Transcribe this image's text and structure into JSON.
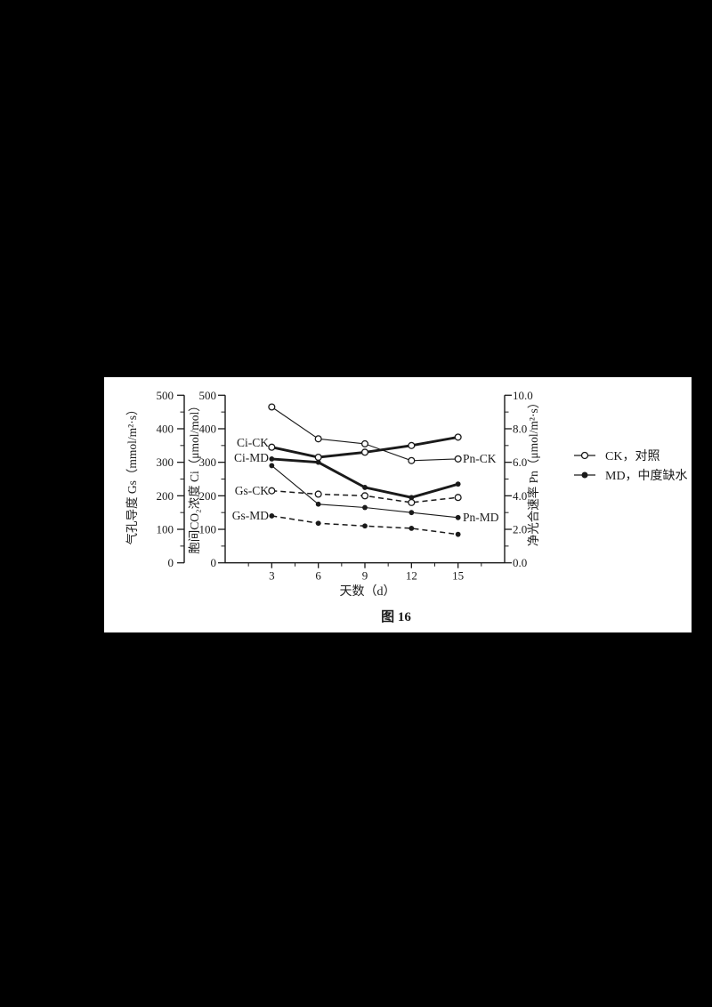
{
  "figure": {
    "caption": "图 16",
    "page_background": "#000000",
    "panel_background": "#ffffff",
    "ink": "#1a1a1a"
  },
  "chart_data": {
    "type": "line",
    "x": [
      3,
      6,
      9,
      12,
      15
    ],
    "xlabel": "天数（d）",
    "x_tick_labels": [
      "3",
      "6",
      "9",
      "12",
      "15"
    ],
    "x_range": [
      0,
      18
    ],
    "grid": false,
    "axes": {
      "gs": {
        "label": "气孔导度 Gs（mmol/m²·s）",
        "side": "outer-left",
        "ylim": [
          0,
          500
        ],
        "tick_step": 100,
        "minor_step": 50,
        "tick_labels": [
          "0",
          "100",
          "200",
          "300",
          "400",
          "500"
        ]
      },
      "ci": {
        "label": "胞间CO₂浓度 Ci（μmol/mol）",
        "side": "left",
        "ylim": [
          0,
          500
        ],
        "tick_step": 100,
        "minor_step": 50,
        "tick_labels": [
          "0",
          "100",
          "200",
          "300",
          "400",
          "500"
        ]
      },
      "pn": {
        "label": "净光合速率 Pn（μmol/m²·s）",
        "side": "right",
        "ylim": [
          0,
          10
        ],
        "tick_step": 2,
        "minor_step": 1,
        "tick_labels": [
          "0.0",
          "2.0",
          "4.0",
          "6.0",
          "8.0",
          "10.0"
        ]
      }
    },
    "series": [
      {
        "name": "Gs-CK",
        "axis": "gs",
        "line": "dashed",
        "marker": "open",
        "values": [
          215,
          205,
          200,
          180,
          195
        ],
        "label_side": "left"
      },
      {
        "name": "Gs-MD",
        "axis": "gs",
        "line": "dashed",
        "marker": "filled",
        "values": [
          140,
          118,
          110,
          103,
          85
        ],
        "label_side": "left"
      },
      {
        "name": "Pn-CK",
        "axis": "pn",
        "line": "thin",
        "marker": "open",
        "values": [
          9.3,
          7.4,
          7.1,
          6.1,
          6.2
        ],
        "label_side": "right"
      },
      {
        "name": "Pn-MD",
        "axis": "pn",
        "line": "thin",
        "marker": "filled",
        "values": [
          5.8,
          3.5,
          3.3,
          3.0,
          2.7
        ],
        "label_side": "right"
      },
      {
        "name": "Ci-CK",
        "axis": "ci",
        "line": "thick",
        "marker": "open",
        "values": [
          345,
          315,
          330,
          350,
          375
        ],
        "label_side": "left"
      },
      {
        "name": "Ci-MD",
        "axis": "ci",
        "line": "thick",
        "marker": "filled",
        "values": [
          310,
          300,
          225,
          195,
          235
        ],
        "label_side": "left"
      }
    ],
    "legend": {
      "position": "right-of-plot",
      "items": [
        {
          "marker": "open",
          "label": "CK，对照"
        },
        {
          "marker": "filled",
          "label": "MD，中度缺水"
        }
      ]
    }
  }
}
